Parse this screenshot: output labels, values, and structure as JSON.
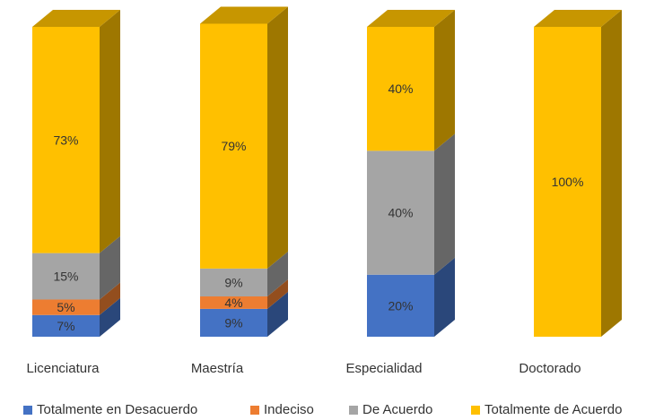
{
  "chart_data": {
    "type": "bar",
    "stacked": true,
    "three_d": true,
    "categories": [
      "Licenciatura",
      "Maestría",
      "Especialidad",
      "Doctorado"
    ],
    "series": [
      {
        "name": "Totalmente en Desacuerdo",
        "color": "#4472C4",
        "values": [
          7,
          9,
          20,
          0
        ],
        "labels": [
          "7%",
          "9%",
          "20%",
          ""
        ]
      },
      {
        "name": "Indeciso",
        "color": "#ED7D31",
        "values": [
          5,
          4,
          0,
          0
        ],
        "labels": [
          "5%",
          "4%",
          "",
          ""
        ]
      },
      {
        "name": "De Acuerdo",
        "color": "#A5A5A5",
        "values": [
          15,
          9,
          40,
          0
        ],
        "labels": [
          "15%",
          "9%",
          "40%",
          ""
        ]
      },
      {
        "name": "Totalmente de Acuerdo",
        "color": "#FFC000",
        "values": [
          73,
          79,
          40,
          100
        ],
        "labels": [
          "73%",
          "79%",
          "40%",
          "100%"
        ]
      }
    ],
    "ylim": [
      0,
      100
    ],
    "grid": false,
    "legend_position": "bottom"
  }
}
